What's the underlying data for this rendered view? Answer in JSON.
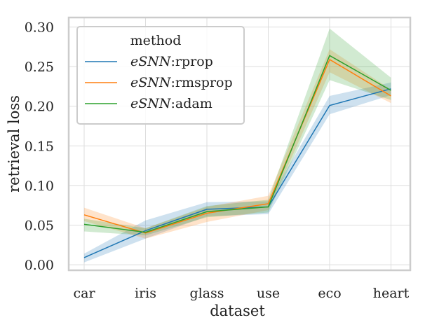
{
  "chart_data": {
    "type": "line",
    "categories": [
      "car",
      "iris",
      "glass",
      "use",
      "eco",
      "heart"
    ],
    "xlabel": "dataset",
    "ylabel": "retrieval loss",
    "ylim": [
      -0.007,
      0.312
    ],
    "yticks": [
      "0.00",
      "0.05",
      "0.10",
      "0.15",
      "0.20",
      "0.25",
      "0.30"
    ],
    "grid": true,
    "legend": {
      "title": "method",
      "placement": "top-left",
      "entries": [
        {
          "italic": "eSNN",
          "suffix": ":rprop"
        },
        {
          "italic": "eSNN",
          "suffix": ":rmsprop"
        },
        {
          "italic": "eSNN",
          "suffix": ":adam"
        }
      ]
    },
    "series": [
      {
        "color": "#1f77b4",
        "values": [
          0.009,
          0.043,
          0.07,
          0.073,
          0.201,
          0.222
        ],
        "lower": [
          0.003,
          0.033,
          0.061,
          0.064,
          0.19,
          0.214
        ],
        "upper": [
          0.014,
          0.056,
          0.079,
          0.08,
          0.213,
          0.23
        ]
      },
      {
        "color": "#ff7f0e",
        "values": [
          0.063,
          0.04,
          0.065,
          0.077,
          0.259,
          0.213
        ],
        "lower": [
          0.055,
          0.033,
          0.054,
          0.069,
          0.243,
          0.204
        ],
        "upper": [
          0.072,
          0.046,
          0.073,
          0.087,
          0.272,
          0.221
        ]
      },
      {
        "color": "#2ca02c",
        "values": [
          0.051,
          0.041,
          0.067,
          0.073,
          0.264,
          0.22
        ],
        "lower": [
          0.042,
          0.037,
          0.06,
          0.066,
          0.233,
          0.208
        ],
        "upper": [
          0.058,
          0.046,
          0.074,
          0.082,
          0.298,
          0.236
        ]
      }
    ]
  }
}
